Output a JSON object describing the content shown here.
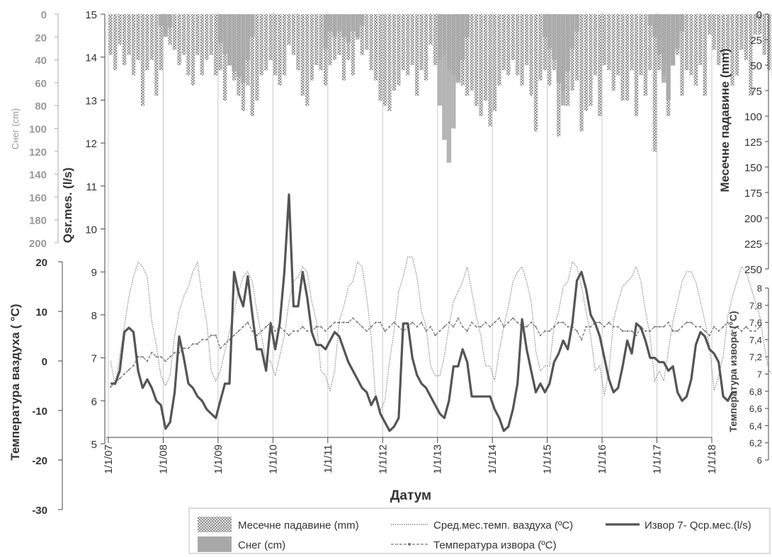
{
  "chart_data": {
    "type": "line",
    "xlabel": "Датум",
    "x_ticks": [
      "1/1/07",
      "1/1/08",
      "1/1/09",
      "1/1/10",
      "1/1/11",
      "1/1/12",
      "1/1/13",
      "1/1/14",
      "1/1/15",
      "1/1/16",
      "1/1/17",
      "1/1/18"
    ],
    "axes": {
      "discharge": {
        "label": "Qsr.mes. (l/s)",
        "ylim": [
          5,
          15
        ],
        "ticks": [
          "5",
          "6",
          "7",
          "8",
          "9",
          "10",
          "11",
          "12",
          "13",
          "14",
          "15"
        ]
      },
      "snow": {
        "label": "Снег (cm)",
        "ylim": [
          0,
          200
        ],
        "inverted": true,
        "ticks": [
          "0",
          "20",
          "40",
          "60",
          "80",
          "100",
          "120",
          "140",
          "160",
          "180",
          "200"
        ]
      },
      "air_temp": {
        "label": "Температура ваздуха ( °C)",
        "ylim": [
          -30,
          20
        ],
        "ticks": [
          "20",
          "10",
          "0",
          "-10",
          "-20",
          "-30"
        ]
      },
      "precip": {
        "label": "Месечне падавине (mm)",
        "ylim": [
          0,
          250
        ],
        "inverted": true,
        "ticks": [
          "0",
          "25",
          "50",
          "75",
          "100",
          "125",
          "150",
          "175",
          "200",
          "225",
          "250"
        ]
      },
      "spring_temp": {
        "label": "Температура извора (°C)",
        "ylim": [
          6,
          8
        ],
        "ticks": [
          "8",
          "7,8",
          "7,6",
          "7,4",
          "7,2",
          "7",
          "6,8",
          "6,6",
          "6,4",
          "6,2",
          "6"
        ]
      }
    },
    "series": [
      {
        "name": "Месечне падавине (mm)",
        "axis": "precip",
        "kind": "bar-hatched",
        "values": [
          40,
          55,
          30,
          50,
          40,
          60,
          45,
          90,
          55,
          45,
          80,
          55,
          20,
          30,
          35,
          50,
          40,
          60,
          70,
          40,
          60,
          45,
          40,
          60,
          55,
          85,
          50,
          65,
          80,
          95,
          70,
          100,
          85,
          60,
          55,
          45,
          60,
          70,
          60,
          30,
          40,
          55,
          80,
          90,
          65,
          50,
          55,
          70,
          50,
          45,
          40,
          65,
          45,
          60,
          25,
          40,
          35,
          55,
          65,
          85,
          90,
          95,
          75,
          70,
          55,
          60,
          50,
          80,
          55,
          65,
          30,
          50,
          45,
          40,
          55,
          60,
          65,
          70,
          80,
          75,
          90,
          100,
          85,
          110,
          95,
          70,
          55,
          60,
          45,
          60,
          70,
          50,
          80,
          115,
          65,
          55,
          70,
          55,
          120,
          75,
          90,
          75,
          65,
          115,
          95,
          90,
          60,
          100,
          50,
          55,
          75,
          60,
          85,
          85,
          55,
          100,
          60,
          80,
          55,
          135,
          55,
          60,
          100,
          50,
          40,
          80,
          55,
          60,
          70,
          50,
          80,
          20,
          35,
          50,
          40,
          35,
          70,
          60,
          35,
          45,
          80,
          20,
          20,
          40,
          55,
          60
        ]
      },
      {
        "name": "Снег (cm)",
        "axis": "snow",
        "kind": "bar-gray",
        "values": [
          0,
          0,
          0,
          0,
          0,
          0,
          0,
          0,
          0,
          0,
          0,
          10,
          20,
          12,
          0,
          0,
          0,
          0,
          0,
          0,
          0,
          0,
          0,
          0,
          25,
          35,
          45,
          50,
          55,
          60,
          40,
          20,
          0,
          0,
          0,
          0,
          0,
          0,
          0,
          0,
          0,
          0,
          0,
          0,
          0,
          0,
          0,
          30,
          15,
          20,
          15,
          20,
          25,
          15,
          20,
          10,
          0,
          0,
          0,
          0,
          0,
          0,
          0,
          0,
          0,
          0,
          0,
          0,
          0,
          0,
          0,
          0,
          80,
          110,
          130,
          100,
          60,
          40,
          20,
          0,
          0,
          0,
          0,
          0,
          0,
          0,
          0,
          0,
          0,
          0,
          0,
          0,
          0,
          0,
          0,
          20,
          30,
          40,
          60,
          80,
          50,
          30,
          15,
          0,
          0,
          0,
          0,
          0,
          0,
          0,
          0,
          0,
          0,
          0,
          0,
          0,
          0,
          0,
          10,
          20,
          35,
          60,
          75,
          45,
          30,
          15,
          0,
          0,
          0,
          0,
          0,
          0,
          0,
          0,
          0,
          0,
          0,
          0,
          0,
          0,
          0,
          0,
          0
        ]
      },
      {
        "name": "Сред.мес.темп. ваздуха (ºC)",
        "axis": "air_temp",
        "kind": "line-dotted",
        "values": [
          0,
          -5,
          1,
          7,
          13,
          17,
          20,
          19,
          17,
          8,
          3,
          -3,
          -5,
          -3,
          5,
          10,
          13,
          15,
          18,
          20,
          13,
          8,
          -2,
          -4,
          -2,
          2,
          6,
          10,
          14,
          17,
          18,
          16,
          10,
          5,
          0,
          0,
          -3,
          1,
          5,
          12,
          16,
          17,
          19,
          18,
          12,
          8,
          -2,
          -3,
          -6,
          -2,
          8,
          11,
          15,
          16,
          20,
          19,
          13,
          5,
          -8,
          -10,
          -8,
          0,
          6,
          14,
          17,
          21,
          21,
          17,
          10,
          7,
          -1,
          -3,
          -3,
          1,
          7,
          12,
          14,
          16,
          19,
          14,
          9,
          5,
          -1,
          -1,
          -4,
          2,
          7,
          11,
          16,
          18,
          19,
          16,
          12,
          2,
          -2,
          -1,
          -1,
          7,
          10,
          15,
          16,
          20,
          19,
          15,
          10,
          5,
          -2,
          -1,
          -7,
          -2,
          8,
          12,
          15,
          16,
          17,
          19,
          16,
          10,
          5,
          -4,
          -2,
          -4,
          2,
          8,
          12,
          16,
          18,
          18,
          16,
          12,
          8,
          3,
          -6,
          -3,
          1,
          9,
          13,
          16,
          19,
          18,
          15,
          12,
          9,
          3,
          -2,
          -3
        ]
      },
      {
        "name": "Температура извора (ºC)",
        "axis": "spring_temp",
        "kind": "line-dashdot",
        "values": [
          6.85,
          6.9,
          6.95,
          7.0,
          7.05,
          7.1,
          7.2,
          7.2,
          7.15,
          7.25,
          7.2,
          7.2,
          7.15,
          7.2,
          7.25,
          7.25,
          7.3,
          7.3,
          7.35,
          7.35,
          7.4,
          7.4,
          7.45,
          7.45,
          7.3,
          7.35,
          7.4,
          7.45,
          7.5,
          7.55,
          7.6,
          7.5,
          7.45,
          7.5,
          7.55,
          7.6,
          7.5,
          7.55,
          7.5,
          7.45,
          7.5,
          7.5,
          7.55,
          7.5,
          7.5,
          7.55,
          7.55,
          7.5,
          7.55,
          7.6,
          7.6,
          7.6,
          7.6,
          7.65,
          7.6,
          7.55,
          7.5,
          7.55,
          7.6,
          7.6,
          7.5,
          7.55,
          7.6,
          7.55,
          7.5,
          7.55,
          7.6,
          7.55,
          7.6,
          7.5,
          7.55,
          7.45,
          7.5,
          7.55,
          7.6,
          7.55,
          7.65,
          7.55,
          7.5,
          7.6,
          7.55,
          7.55,
          7.6,
          7.55,
          7.6,
          7.65,
          7.55,
          7.6,
          7.65,
          7.6,
          7.55,
          7.55,
          7.6,
          7.55,
          7.45,
          7.5,
          7.5,
          7.55,
          7.6,
          7.6,
          7.55,
          7.55,
          7.5,
          7.4,
          7.55,
          7.55,
          7.6,
          7.6,
          7.55,
          7.6,
          7.55,
          7.55,
          7.5,
          7.5,
          7.5,
          7.45,
          7.55,
          7.5,
          7.5,
          7.55,
          7.55,
          7.55,
          7.6,
          7.5,
          7.5,
          7.55,
          7.6,
          7.6,
          7.55,
          7.55,
          7.5,
          7.45,
          7.55,
          7.5,
          7.55,
          7.6,
          7.5,
          7.55,
          7.5,
          7.55,
          7.5,
          7.5,
          7.55
        ]
      },
      {
        "name": "Извор 7- Qср.мес.(l/s)",
        "axis": "discharge",
        "kind": "line-solid",
        "values": [
          6.4,
          6.4,
          6.7,
          7.6,
          7.7,
          7.6,
          6.7,
          6.3,
          6.5,
          6.3,
          6.0,
          5.9,
          5.35,
          5.5,
          6.2,
          7.5,
          7.0,
          6.4,
          6.3,
          6.1,
          6.0,
          5.8,
          5.7,
          5.6,
          6.0,
          6.4,
          6.4,
          9.0,
          8.5,
          8.2,
          8.9,
          8.0,
          7.2,
          7.2,
          6.7,
          7.8,
          7.2,
          7.8,
          9.0,
          10.8,
          8.2,
          8.2,
          9.0,
          8.4,
          7.6,
          7.3,
          7.3,
          7.2,
          7.4,
          7.6,
          7.5,
          7.2,
          6.9,
          6.7,
          6.5,
          6.3,
          6.2,
          5.9,
          6.1,
          5.7,
          5.5,
          5.3,
          5.4,
          5.6,
          7.8,
          7.8,
          7.0,
          6.6,
          6.4,
          6.3,
          6.1,
          5.9,
          5.7,
          5.6,
          6.0,
          6.8,
          6.8,
          7.2,
          6.9,
          6.1,
          6.1,
          6.1,
          6.1,
          6.1,
          5.8,
          5.6,
          5.3,
          5.4,
          5.8,
          6.4,
          7.9,
          7.2,
          6.7,
          6.2,
          6.4,
          6.2,
          6.4,
          6.9,
          7.1,
          7.4,
          7.2,
          7.8,
          8.8,
          9.0,
          8.6,
          8.0,
          7.8,
          7.5,
          7.0,
          6.5,
          6.2,
          6.3,
          6.8,
          7.4,
          7.1,
          7.8,
          7.7,
          7.4,
          7.0,
          7.0,
          6.9,
          6.9,
          6.7,
          6.8,
          6.2,
          6.0,
          6.1,
          6.5,
          7.3,
          7.6,
          7.5,
          7.2,
          7.1,
          6.9,
          6.1,
          6.0,
          6.2,
          6.2
        ]
      }
    ]
  }
}
